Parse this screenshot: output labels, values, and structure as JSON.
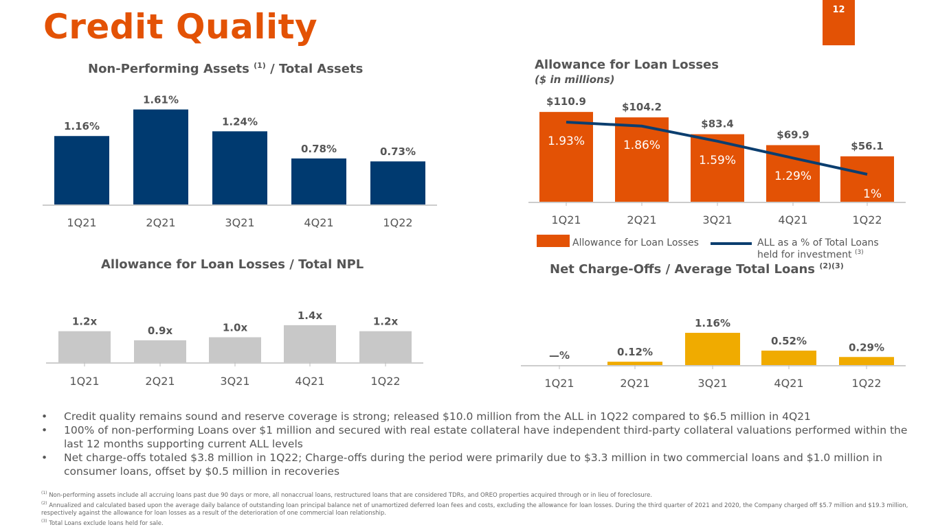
{
  "header": {
    "title": "Credit Quality",
    "page_number": "12"
  },
  "colors": {
    "orange": "#E35205",
    "navy": "#003A70",
    "gray": "#C8C8C8",
    "yellow": "#F0AB00",
    "line": "#0B3E6F"
  },
  "chart_data": [
    {
      "type": "bar",
      "title": "Non-Performing Assets",
      "title_sup": "(1)",
      "title_suffix": "/ Total Assets",
      "categories": [
        "1Q21",
        "2Q21",
        "3Q21",
        "4Q21",
        "1Q22"
      ],
      "values": [
        1.16,
        1.61,
        1.24,
        0.78,
        0.73
      ],
      "labels": [
        "1.16%",
        "1.61%",
        "1.24%",
        "0.78%",
        "0.73%"
      ],
      "ylim": [
        0,
        1.61
      ]
    },
    {
      "type": "bar+line",
      "title": "Allowance for Loan Losses",
      "subtitle": "($ in millions)",
      "categories": [
        "1Q21",
        "2Q21",
        "3Q21",
        "4Q21",
        "1Q22"
      ],
      "series": [
        {
          "name": "Allowance for Loan Losses",
          "values": [
            110.9,
            104.2,
            83.4,
            69.9,
            56.1
          ],
          "labels": [
            "$110.9",
            "$104.2",
            "$83.4",
            "$69.9",
            "$56.1"
          ]
        },
        {
          "name": "ALL as a % of Total Loans held for investment",
          "name_sup": "(3)",
          "values": [
            1.93,
            1.86,
            1.59,
            1.29,
            1.0
          ],
          "labels": [
            "1.93%",
            "1.86%",
            "1.59%",
            "1.29%",
            "1%"
          ]
        }
      ],
      "legend": [
        "Allowance for Loan Losses",
        "ALL as a % of Total Loans",
        "held for investment"
      ],
      "legend_position": "bottom"
    },
    {
      "type": "bar",
      "title": "Allowance for Loan Losses / Total NPL",
      "categories": [
        "1Q21",
        "2Q21",
        "3Q21",
        "4Q21",
        "1Q22"
      ],
      "values": [
        1.2,
        0.9,
        1.0,
        1.4,
        1.2
      ],
      "labels": [
        "1.2x",
        "0.9x",
        "1.0x",
        "1.4x",
        "1.2x"
      ]
    },
    {
      "type": "bar",
      "title": "Net Charge-Offs / Average Total Loans",
      "title_sup": "(2)(3)",
      "categories": [
        "1Q21",
        "2Q21",
        "3Q21",
        "4Q21",
        "1Q22"
      ],
      "values": [
        0,
        0.12,
        1.16,
        0.52,
        0.29
      ],
      "labels": [
        "—%",
        "0.12%",
        "1.16%",
        "0.52%",
        "0.29%"
      ]
    }
  ],
  "bullets": [
    "Credit quality remains sound and reserve coverage is strong; released $10.0 million from the ALL in 1Q22 compared to $6.5 million in 4Q21",
    "100% of non-performing Loans over $1 million and secured with real estate collateral have independent third-party collateral valuations performed within the last 12 months supporting current ALL levels",
    "Net charge-offs totaled $3.8 million in 1Q22; Charge-offs during the period were primarily due to $3.3 million in two commercial loans and $1.0 million in consumer loans, offset by $0.5 million in recoveries"
  ],
  "footnotes": [
    {
      "mark": "(1)",
      "text": "Non-performing assets include all accruing loans past due 90 days or more, all nonaccrual loans, restructured loans that are considered TDRs, and OREO properties acquired through or in lieu of foreclosure."
    },
    {
      "mark": "(2)",
      "text": "Annualized and calculated based upon the average daily balance of outstanding loan principal balance net of unamortized deferred loan fees and costs, excluding the allowance for loan losses. During the third quarter of 2021 and 2020, the Company charged off $5.7 million and $19.3 million, respectively against the allowance for loan losses as a result of the deterioration of one commercial loan relationship."
    },
    {
      "mark": "(3)",
      "text": "Total Loans exclude loans held for sale."
    }
  ]
}
